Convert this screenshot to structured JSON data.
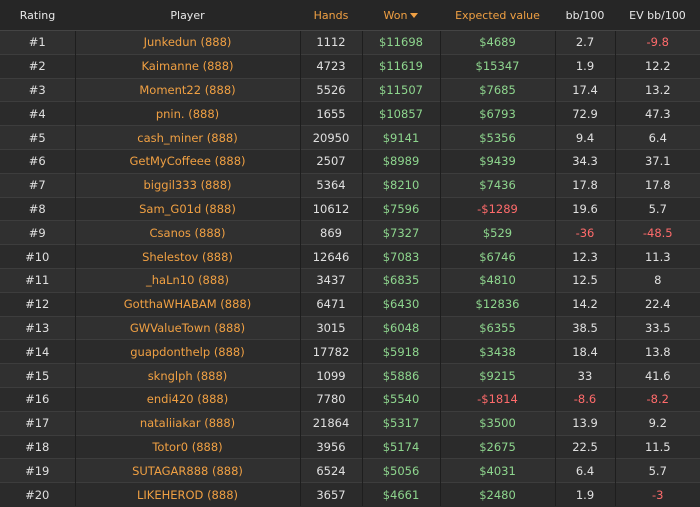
{
  "table": {
    "headers": [
      "Rating",
      "Player",
      "Hands",
      "Won",
      "Expected value",
      "bb/100",
      "EV bb/100"
    ],
    "rows": [
      [
        "#1",
        "Junkedun (888)",
        "1112",
        "$11698",
        "$4689",
        "2.7",
        "-9.8"
      ],
      [
        "#2",
        "Kaimanne (888)",
        "4723",
        "$11619",
        "$15347",
        "1.9",
        "12.2"
      ],
      [
        "#3",
        "Moment22 (888)",
        "5526",
        "$11507",
        "$7685",
        "17.4",
        "13.2"
      ],
      [
        "#4",
        "pnin. (888)",
        "1655",
        "$10857",
        "$6793",
        "72.9",
        "47.3"
      ],
      [
        "#5",
        "cash_miner (888)",
        "20950",
        "$9141",
        "$5356",
        "9.4",
        "6.4"
      ],
      [
        "#6",
        "GetMyCoffeee (888)",
        "2507",
        "$8989",
        "$9439",
        "34.3",
        "37.1"
      ],
      [
        "#7",
        "biggil333 (888)",
        "5364",
        "$8210",
        "$7436",
        "17.8",
        "17.8"
      ],
      [
        "#8",
        "Sam_G01d (888)",
        "10612",
        "$7596",
        "-$1289",
        "19.6",
        "5.7"
      ],
      [
        "#9",
        "Csanos (888)",
        "869",
        "$7327",
        "$529",
        "-36",
        "-48.5"
      ],
      [
        "#10",
        "Shelestov (888)",
        "12646",
        "$7083",
        "$6746",
        "12.3",
        "11.3"
      ],
      [
        "#11",
        "_haLn10 (888)",
        "3437",
        "$6835",
        "$4810",
        "12.5",
        "8"
      ],
      [
        "#12",
        "GotthaWHABAM (888)",
        "6471",
        "$6430",
        "$12836",
        "14.2",
        "22.4"
      ],
      [
        "#13",
        "GWValueTown (888)",
        "3015",
        "$6048",
        "$6355",
        "38.5",
        "33.5"
      ],
      [
        "#14",
        "guapdonthelp (888)",
        "17782",
        "$5918",
        "$3438",
        "18.4",
        "13.8"
      ],
      [
        "#15",
        "sknglph (888)",
        "1099",
        "$5886",
        "$9215",
        "33",
        "41.6"
      ],
      [
        "#16",
        "endi420 (888)",
        "7780",
        "$5540",
        "-$1814",
        "-8.6",
        "-8.2"
      ],
      [
        "#17",
        "nataliiakar (888)",
        "21864",
        "$5317",
        "$3500",
        "13.9",
        "9.2"
      ],
      [
        "#18",
        "Totor0 (888)",
        "3956",
        "$5174",
        "$2675",
        "22.5",
        "11.5"
      ],
      [
        "#19",
        "SUTAGAR888 (888)",
        "6524",
        "$5056",
        "$4031",
        "6.4",
        "5.7"
      ],
      [
        "#20",
        "LIKEHEROD (888)",
        "3657",
        "$4661",
        "$2480",
        "1.9",
        "-3"
      ]
    ]
  }
}
